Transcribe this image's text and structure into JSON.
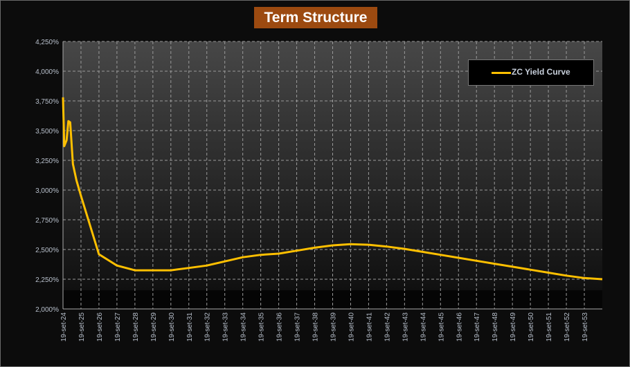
{
  "chart_data": {
    "type": "line",
    "title": "Term Structure",
    "xlabel": "",
    "ylabel": "",
    "ylim": [
      2.0,
      4.25
    ],
    "yticks": [
      "2,000%",
      "2,250%",
      "2,500%",
      "2,750%",
      "3,000%",
      "3,250%",
      "3,500%",
      "3,750%",
      "4,000%",
      "4,250%"
    ],
    "xticks": [
      "19-set-24",
      "19-set-25",
      "19-set-26",
      "19-set-27",
      "19-set-28",
      "19-set-29",
      "19-set-30",
      "19-set-31",
      "19-set-32",
      "19-set-33",
      "19-set-34",
      "19-set-35",
      "19-set-36",
      "19-set-37",
      "19-set-38",
      "19-set-39",
      "19-set-40",
      "19-set-41",
      "19-set-42",
      "19-set-43",
      "19-set-44",
      "19-set-45",
      "19-set-46",
      "19-set-47",
      "19-set-48",
      "19-set-49",
      "19-set-50",
      "19-set-51",
      "19-set-52",
      "19-set-53"
    ],
    "xlim": [
      2024.0,
      2054.0
    ],
    "grid": true,
    "legend_position": "top-right",
    "series": [
      {
        "name": "ZC Yield Curve",
        "color": "#ffc000",
        "x": [
          2024.0,
          2024.07,
          2024.2,
          2024.3,
          2024.4,
          2024.55,
          2024.75,
          2025.0,
          2026.0,
          2027.0,
          2028.0,
          2029.0,
          2030.0,
          2031.0,
          2032.0,
          2033.0,
          2034.0,
          2035.0,
          2036.0,
          2037.0,
          2038.0,
          2039.0,
          2040.0,
          2041.0,
          2042.0,
          2043.0,
          2044.0,
          2045.0,
          2046.0,
          2047.0,
          2048.0,
          2049.0,
          2050.0,
          2051.0,
          2052.0,
          2053.0,
          2054.0
        ],
        "y": [
          3.78,
          3.37,
          3.42,
          3.58,
          3.57,
          3.22,
          3.08,
          2.95,
          2.46,
          2.365,
          2.325,
          2.325,
          2.325,
          2.345,
          2.365,
          2.4,
          2.435,
          2.455,
          2.465,
          2.49,
          2.515,
          2.535,
          2.545,
          2.54,
          2.525,
          2.505,
          2.48,
          2.455,
          2.43,
          2.405,
          2.38,
          2.355,
          2.33,
          2.305,
          2.28,
          2.26,
          2.25
        ]
      }
    ]
  }
}
